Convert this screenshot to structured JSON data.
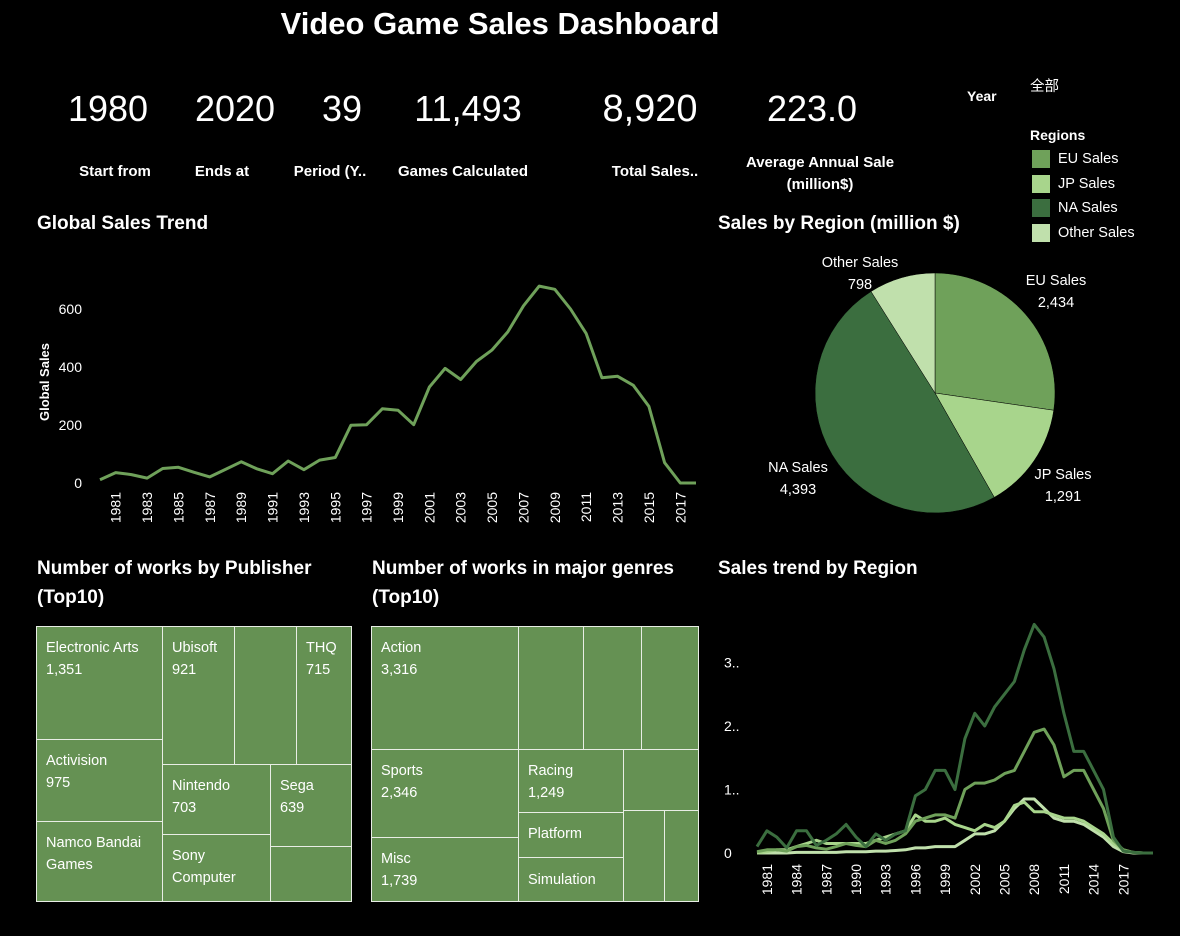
{
  "title": "Video Game Sales Dashboard",
  "kpis": [
    {
      "value": "1980",
      "label": "Start from"
    },
    {
      "value": "2020",
      "label": "Ends at"
    },
    {
      "value": "39",
      "label": "Period (Y.."
    },
    {
      "value": "11,493",
      "label": "Games Calculated"
    },
    {
      "value": "8,920",
      "label": "Total Sales.."
    },
    {
      "value": "223.0",
      "label": "Average Annual Sale",
      "label2": "(million$)"
    }
  ],
  "filter": {
    "label": "Year",
    "value": "全部"
  },
  "legend": {
    "title": "Regions",
    "items": [
      {
        "name": "EU Sales",
        "color": "#6fa15a"
      },
      {
        "name": "JP Sales",
        "color": "#a8d58c"
      },
      {
        "name": "NA Sales",
        "color": "#3b6e3f"
      },
      {
        "name": "Other Sales",
        "color": "#c0e0ac"
      }
    ]
  },
  "sections": {
    "global_trend": "Global Sales Trend",
    "by_region": "Sales by Region (million $)",
    "publisher": "Number of works by Publisher",
    "publisher2": "(Top10)",
    "genres": "Number of works in major genres",
    "genres2": "(Top10)",
    "region_trend": "Sales trend by Region"
  },
  "chart_data": [
    {
      "type": "line",
      "ylabel": "Global Sales",
      "ylim": [
        0,
        700
      ],
      "yticks": [
        0,
        200,
        400,
        600
      ],
      "x": [
        1980,
        1981,
        1982,
        1983,
        1984,
        1985,
        1986,
        1987,
        1988,
        1989,
        1990,
        1991,
        1992,
        1993,
        1994,
        1995,
        1996,
        1997,
        1998,
        1999,
        2000,
        2001,
        2002,
        2003,
        2004,
        2005,
        2006,
        2007,
        2008,
        2009,
        2010,
        2011,
        2012,
        2013,
        2014,
        2015,
        2016,
        2017,
        2018
      ],
      "xticks": [
        "1981",
        "1983",
        "1985",
        "1987",
        "1989",
        "1991",
        "1993",
        "1995",
        "1997",
        "1999",
        "2001",
        "2003",
        "2005",
        "2007",
        "2009",
        "2011",
        "2013",
        "2015",
        "2017"
      ],
      "values": [
        11,
        36,
        29,
        17,
        50,
        54,
        37,
        21,
        47,
        73,
        49,
        32,
        76,
        46,
        79,
        88,
        199,
        201,
        256,
        251,
        201,
        331,
        395,
        357,
        419,
        459,
        521,
        611,
        679,
        668,
        600,
        515,
        363,
        368,
        337,
        264,
        70,
        0,
        0
      ],
      "color": "#6fa15a"
    },
    {
      "type": "pie",
      "slices": [
        {
          "name": "EU Sales",
          "label": "2,434",
          "value": 2434,
          "color": "#6fa15a"
        },
        {
          "name": "JP Sales",
          "label": "1,291",
          "value": 1291,
          "color": "#a8d58c"
        },
        {
          "name": "NA Sales",
          "label": "4,393",
          "value": 4393,
          "color": "#3b6e3f"
        },
        {
          "name": "Other Sales",
          "label": "798",
          "value": 798,
          "color": "#c0e0ac"
        }
      ]
    },
    {
      "type": "treemap",
      "cells": [
        {
          "name": "Electronic Arts",
          "label": "1,351",
          "value": 1351
        },
        {
          "name": "Activision",
          "label": "975",
          "value": 975
        },
        {
          "name": "Namco Bandai Games",
          "label": "",
          "value": 0
        },
        {
          "name": "Ubisoft",
          "label": "921",
          "value": 921
        },
        {
          "name": "",
          "label": "",
          "value": 0
        },
        {
          "name": "THQ",
          "label": "715",
          "value": 715
        },
        {
          "name": "Nintendo",
          "label": "703",
          "value": 703
        },
        {
          "name": "Sega",
          "label": "639",
          "value": 639
        },
        {
          "name": "Sony Computer",
          "label": "",
          "value": 0
        },
        {
          "name": "",
          "label": "",
          "value": 0
        }
      ]
    },
    {
      "type": "treemap",
      "cells": [
        {
          "name": "Action",
          "label": "3,316",
          "value": 3316
        },
        {
          "name": "",
          "label": "",
          "value": 0
        },
        {
          "name": "",
          "label": "",
          "value": 0
        },
        {
          "name": "",
          "label": "",
          "value": 0
        },
        {
          "name": "Sports",
          "label": "2,346",
          "value": 2346
        },
        {
          "name": "Misc",
          "label": "1,739",
          "value": 1739
        },
        {
          "name": "Racing",
          "label": "1,249",
          "value": 1249
        },
        {
          "name": "Platform",
          "label": "",
          "value": 0
        },
        {
          "name": "Simulation",
          "label": "",
          "value": 0
        },
        {
          "name": "",
          "label": "",
          "value": 0
        },
        {
          "name": "",
          "label": "",
          "value": 0
        },
        {
          "name": "",
          "label": "",
          "value": 0
        }
      ]
    },
    {
      "type": "line",
      "ylim": [
        0,
        3.7
      ],
      "yticks": [
        {
          "v": 0,
          "t": "0"
        },
        {
          "v": 1,
          "t": "1.."
        },
        {
          "v": 2,
          "t": "2.."
        },
        {
          "v": 3,
          "t": "3.."
        }
      ],
      "x": [
        1980,
        1981,
        1982,
        1983,
        1984,
        1985,
        1986,
        1987,
        1988,
        1989,
        1990,
        1991,
        1992,
        1993,
        1994,
        1995,
        1996,
        1997,
        1998,
        1999,
        2000,
        2001,
        2002,
        2003,
        2004,
        2005,
        2006,
        2007,
        2008,
        2009,
        2010,
        2011,
        2012,
        2013,
        2014,
        2015,
        2016,
        2017,
        2018,
        2019,
        2020
      ],
      "xticks": [
        "1981",
        "1984",
        "1987",
        "1990",
        "1993",
        "1996",
        "1999",
        "2002",
        "2005",
        "2008",
        "2011",
        "2014",
        "2017"
      ],
      "series": [
        {
          "name": "NA Sales",
          "color": "#3b6e3f",
          "values": [
            0.1,
            0.35,
            0.25,
            0.08,
            0.35,
            0.35,
            0.12,
            0.2,
            0.3,
            0.45,
            0.25,
            0.1,
            0.3,
            0.2,
            0.3,
            0.35,
            0.9,
            1.0,
            1.3,
            1.3,
            1.0,
            1.8,
            2.2,
            2.0,
            2.3,
            2.5,
            2.7,
            3.2,
            3.6,
            3.4,
            2.9,
            2.2,
            1.6,
            1.6,
            1.3,
            1.0,
            0.25,
            0.03,
            0.01,
            0.0,
            0.0
          ]
        },
        {
          "name": "EU Sales",
          "color": "#6fa15a",
          "values": [
            0.02,
            0.05,
            0.05,
            0.03,
            0.1,
            0.12,
            0.08,
            0.06,
            0.1,
            0.15,
            0.12,
            0.1,
            0.2,
            0.15,
            0.2,
            0.3,
            0.5,
            0.55,
            0.6,
            0.6,
            0.55,
            1.0,
            1.1,
            1.1,
            1.15,
            1.25,
            1.3,
            1.6,
            1.9,
            1.95,
            1.7,
            1.2,
            1.3,
            1.3,
            1.0,
            0.7,
            0.2,
            0.05,
            0.01,
            0.0,
            0.0
          ]
        },
        {
          "name": "JP Sales",
          "color": "#a8d58c",
          "values": [
            0.0,
            0.02,
            0.05,
            0.05,
            0.1,
            0.15,
            0.2,
            0.15,
            0.15,
            0.15,
            0.15,
            0.15,
            0.2,
            0.25,
            0.3,
            0.35,
            0.6,
            0.5,
            0.5,
            0.55,
            0.45,
            0.4,
            0.35,
            0.45,
            0.4,
            0.5,
            0.75,
            0.8,
            0.65,
            0.65,
            0.6,
            0.55,
            0.55,
            0.5,
            0.4,
            0.3,
            0.15,
            0.05,
            0.01,
            0.0,
            0.0
          ]
        },
        {
          "name": "Other Sales",
          "color": "#c0e0ac",
          "values": [
            0.0,
            0.0,
            0.0,
            0.0,
            0.01,
            0.01,
            0.01,
            0.01,
            0.01,
            0.02,
            0.02,
            0.02,
            0.03,
            0.03,
            0.04,
            0.05,
            0.08,
            0.08,
            0.1,
            0.1,
            0.1,
            0.2,
            0.3,
            0.3,
            0.35,
            0.5,
            0.7,
            0.85,
            0.85,
            0.7,
            0.55,
            0.5,
            0.5,
            0.45,
            0.35,
            0.25,
            0.1,
            0.02,
            0.0,
            0.0,
            0.0
          ]
        }
      ]
    }
  ]
}
